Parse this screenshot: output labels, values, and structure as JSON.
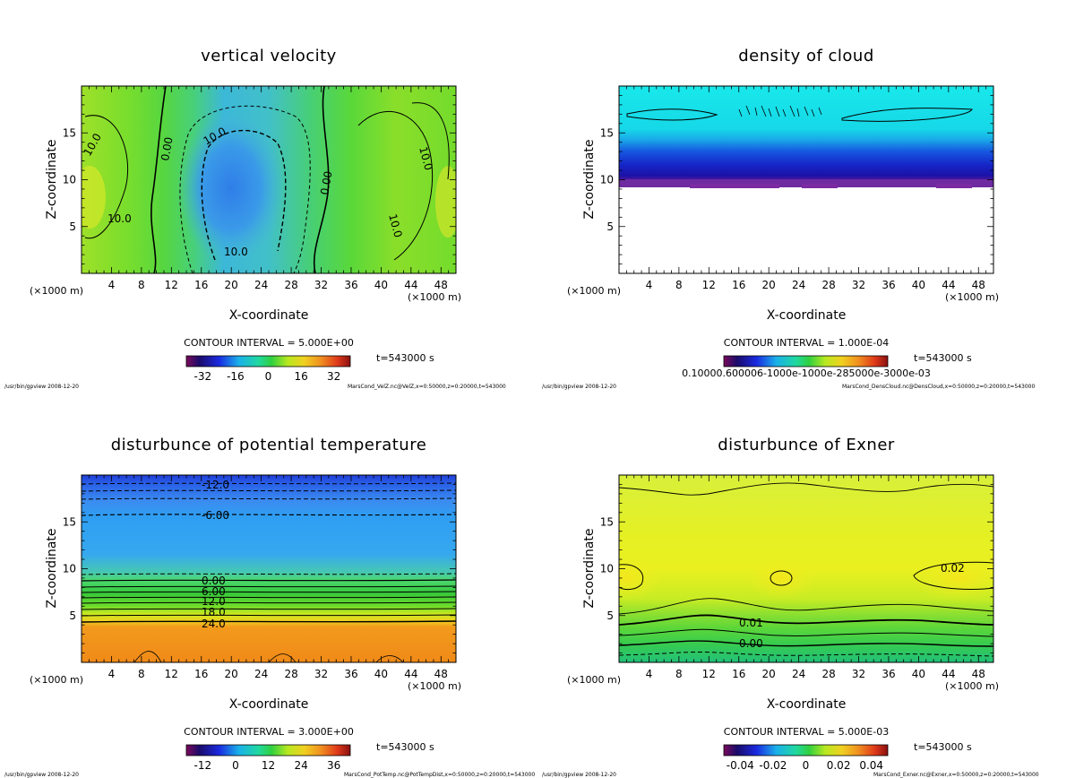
{
  "chart_data": [
    {
      "type": "heatmap",
      "title": "vertical velocity",
      "xlabel": "X-coordinate",
      "ylabel": "Z-coordinate",
      "x_unit": "(×1000 m)",
      "x_unit_right": "(×1000 m)",
      "xlim": [
        0,
        50
      ],
      "ylim": [
        0,
        20
      ],
      "xticks": [
        "4",
        "8",
        "12",
        "16",
        "20",
        "24",
        "28",
        "32",
        "36",
        "40",
        "44",
        "48"
      ],
      "yticks": [
        "5",
        "10",
        "15"
      ],
      "contour_labels": [
        "10.0",
        "0.00",
        "10.0",
        "10.0",
        "0.00",
        "10.0",
        "10.0",
        "10.0"
      ],
      "contour_interval": "CONTOUR INTERVAL = 5.000E+00",
      "time": "t=543000 s",
      "colorbar_ticks": [
        "-32",
        "-16",
        "0",
        "16",
        "32"
      ],
      "footer_left": "/usr/bin/gpview  2008-12-20",
      "footer_right": "MarsCond_VelZ.nc@VelZ,x=0:50000,z=0:20000,t=543000"
    },
    {
      "type": "heatmap",
      "title": "density of cloud",
      "xlabel": "X-coordinate",
      "ylabel": "Z-coordinate",
      "x_unit": "(×1000 m)",
      "x_unit_right": "(×1000 m)",
      "xlim": [
        0,
        50
      ],
      "ylim": [
        0,
        20
      ],
      "xticks": [
        "4",
        "8",
        "12",
        "16",
        "20",
        "24",
        "28",
        "32",
        "36",
        "40",
        "44",
        "48"
      ],
      "yticks": [
        "5",
        "10",
        "15"
      ],
      "contour_interval": "CONTOUR INTERVAL = 1.000E-04",
      "time": "t=543000 s",
      "colorbar_ticks_text": "0.10000.600006-1000e-1000e-285000e-3000e-03",
      "footer_left": "/usr/bin/gpview  2008-12-20",
      "footer_right": "MarsCond_DensCloud.nc@DensCloud,x=0:50000,z=0:20000,t=543000"
    },
    {
      "type": "heatmap",
      "title": "disturbunce of potential temperature",
      "xlabel": "X-coordinate",
      "ylabel": "Z-coordinate",
      "x_unit": "(×1000 m)",
      "x_unit_right": "(×1000 m)",
      "xlim": [
        0,
        50
      ],
      "ylim": [
        0,
        20
      ],
      "xticks": [
        "4",
        "8",
        "12",
        "16",
        "20",
        "24",
        "28",
        "32",
        "36",
        "40",
        "44",
        "48"
      ],
      "yticks": [
        "5",
        "10",
        "15"
      ],
      "contour_labels": [
        "-12.0",
        "-6.00",
        "0.00",
        "6.00",
        "12.0",
        "18.0",
        "24.0"
      ],
      "contour_interval": "CONTOUR INTERVAL = 3.000E+00",
      "time": "t=543000 s",
      "colorbar_ticks": [
        "-12",
        "0",
        "12",
        "24",
        "36"
      ],
      "footer_left": "/usr/bin/gpview  2008-12-20",
      "footer_right": "MarsCond_PotTemp.nc@PotTempDist,x=0:50000,z=0:20000,t=543000"
    },
    {
      "type": "heatmap",
      "title": "disturbunce of Exner",
      "xlabel": "X-coordinate",
      "ylabel": "Z-coordinate",
      "x_unit": "(×1000 m)",
      "x_unit_right": "(×1000 m)",
      "xlim": [
        0,
        50
      ],
      "ylim": [
        0,
        20
      ],
      "xticks": [
        "4",
        "8",
        "12",
        "16",
        "20",
        "24",
        "28",
        "32",
        "36",
        "40",
        "44",
        "48"
      ],
      "yticks": [
        "5",
        "10",
        "15"
      ],
      "contour_labels": [
        "0.02",
        "0.01",
        "0.00"
      ],
      "contour_interval": "CONTOUR INTERVAL = 5.000E-03",
      "time": "t=543000 s",
      "colorbar_ticks": [
        "-0.04",
        "-0.02",
        "0",
        "0.02",
        "0.04"
      ],
      "footer_left": "/usr/bin/gpview  2008-12-20",
      "footer_right": "MarsCond_Exner.nc@Exner,x=0:50000,z=0:20000,t=543000"
    }
  ]
}
